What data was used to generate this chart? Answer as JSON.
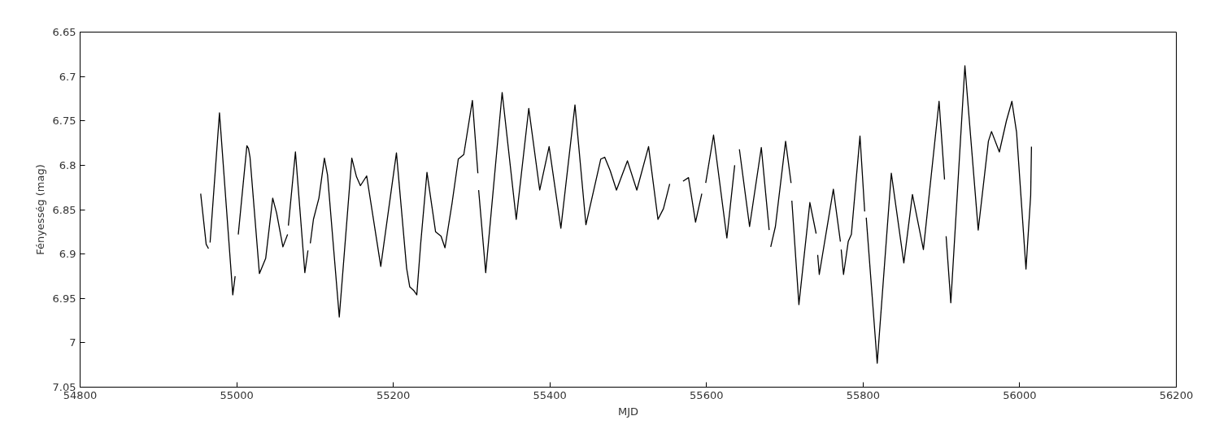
{
  "chart_data": {
    "type": "line",
    "xlabel": "MJD",
    "ylabel": "Fényesség (mag)",
    "xlim": [
      54800,
      56200
    ],
    "ylim": [
      7.05,
      6.65
    ],
    "xticks": [
      54800,
      55000,
      55200,
      55400,
      55600,
      55800,
      56000,
      56200
    ],
    "yticks": [
      6.65,
      6.7,
      6.75,
      6.8,
      6.85,
      6.9,
      6.95,
      7,
      7.05
    ],
    "grid": false,
    "marker": "none",
    "line_style": "solid",
    "series": [
      {
        "color": "#000000",
        "x": [
          54954,
          54961,
          54964,
          54965,
          54966,
          54978,
          54995,
          54998,
          54999,
          55002,
          55013,
          55015,
          55017,
          55029,
          55037,
          55046,
          55051,
          55059,
          55065,
          55065.5,
          55066,
          55075,
          55087,
          55091,
          55092,
          55094,
          55098,
          55105,
          55112,
          55116,
          55131,
          55147,
          55153,
          55158,
          55166,
          55184,
          55204,
          55217,
          55221,
          55226,
          55230,
          55235,
          55243,
          55254,
          55261,
          55266,
          55275,
          55283,
          55290,
          55301,
          55308,
          55308.5,
          55309,
          55318,
          55339,
          55357,
          55373,
          55387,
          55399,
          55414,
          55432,
          55446,
          55465,
          55470,
          55477,
          55485,
          55499,
          55511,
          55526,
          55538,
          55545,
          55553,
          55560,
          55570,
          55577,
          55586,
          55594,
          55596,
          55599,
          55609,
          55626,
          55636,
          55638,
          55642,
          55655,
          55670,
          55680,
          55681,
          55682,
          55688,
          55701,
          55708,
          55708.5,
          55709,
          55718,
          55732,
          55740,
          55741,
          55742,
          55744,
          55762,
          55771,
          55771.5,
          55772,
          55775,
          55781,
          55785,
          55796,
          55802,
          55803,
          55804,
          55818,
          55836,
          55852,
          55863,
          55877,
          55897,
          55904,
          55905,
          55906,
          55912,
          55930,
          55947,
          55960,
          55964,
          55974,
          55983,
          55990,
          55996,
          56008,
          56014,
          56015
        ],
        "values": [
          6.832,
          6.889,
          6.894,
          null,
          6.887,
          6.741,
          6.946,
          6.925,
          null,
          6.878,
          6.778,
          6.781,
          6.791,
          6.922,
          6.905,
          6.837,
          6.854,
          6.892,
          6.878,
          null,
          6.868,
          6.785,
          6.921,
          6.896,
          null,
          6.888,
          6.861,
          6.837,
          6.792,
          6.811,
          6.971,
          6.792,
          6.813,
          6.823,
          6.812,
          6.914,
          6.786,
          6.916,
          6.937,
          6.941,
          6.946,
          6.888,
          6.808,
          6.875,
          6.88,
          6.893,
          6.843,
          6.793,
          6.788,
          6.727,
          6.809,
          null,
          6.828,
          6.921,
          6.718,
          6.861,
          6.736,
          6.828,
          6.779,
          6.871,
          6.732,
          6.867,
          6.793,
          6.791,
          6.806,
          6.828,
          6.795,
          6.828,
          6.779,
          6.861,
          6.849,
          6.821,
          null,
          6.818,
          6.814,
          6.864,
          6.832,
          null,
          6.82,
          6.766,
          6.882,
          6.8,
          null,
          6.782,
          6.869,
          6.78,
          6.873,
          null,
          6.892,
          6.869,
          6.773,
          6.82,
          null,
          6.84,
          6.957,
          6.842,
          6.877,
          null,
          6.901,
          6.923,
          6.827,
          6.886,
          null,
          6.895,
          6.923,
          6.886,
          6.878,
          6.767,
          6.852,
          null,
          6.859,
          7.023,
          6.809,
          6.91,
          6.833,
          6.895,
          6.728,
          6.816,
          null,
          6.88,
          6.955,
          6.688,
          6.873,
          6.773,
          6.762,
          6.785,
          6.75,
          6.728,
          6.763,
          6.917,
          6.834,
          6.779
        ]
      }
    ]
  }
}
